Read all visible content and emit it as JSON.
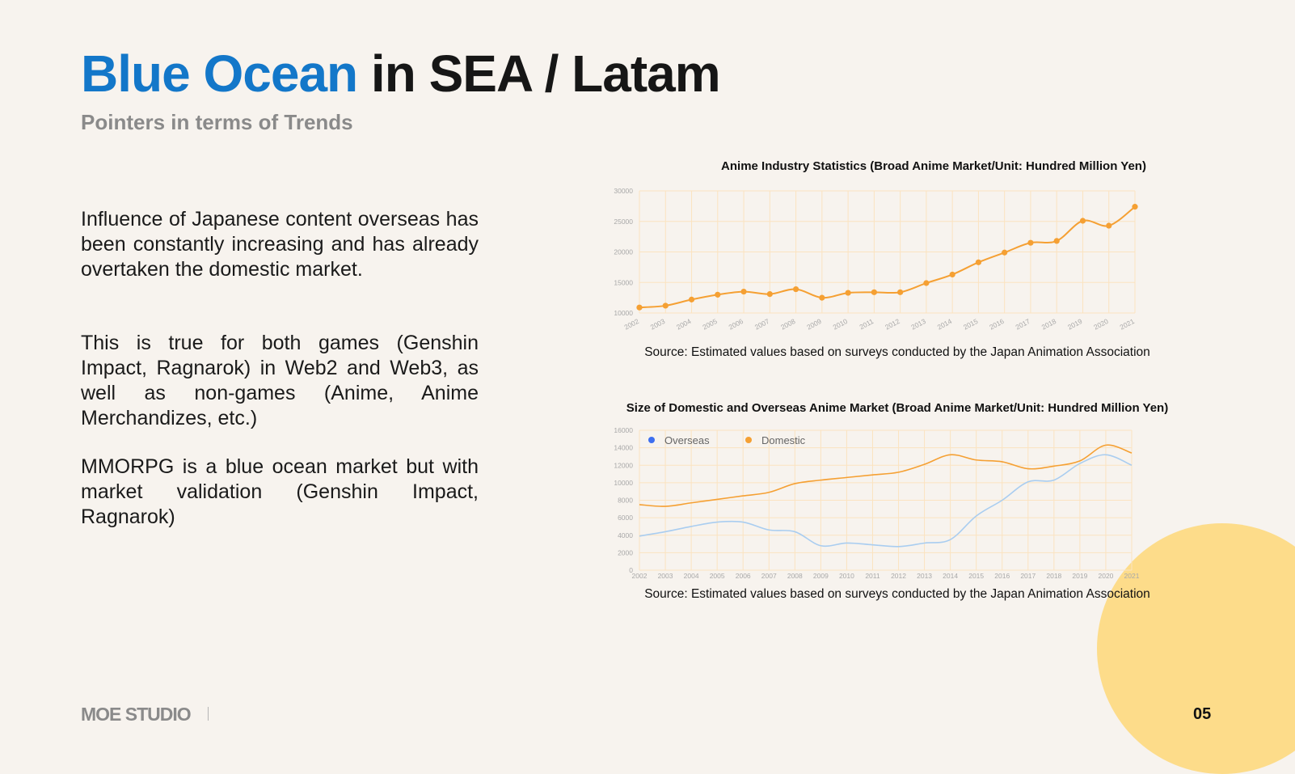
{
  "title": {
    "accent": "Blue Ocean",
    "rest": " in SEA / Latam"
  },
  "subtitle": "Pointers in terms of Trends",
  "paragraphs": [
    "Influence of Japanese content overseas has been constantly increasing and has already overtaken the domestic market.",
    "This is true for both games (Genshin Impact, Ragnarok) in Web2 and Web3, as well as non-games (Anime, Anime Merchandizes, etc.)",
    "MMORPG is a blue ocean market but with market validation (Genshin Impact, Ragnarok)"
  ],
  "footer": {
    "brand": "MOE STUDIO",
    "page": "05"
  },
  "colors": {
    "accent": "#1377c9",
    "orange": "#f5a033",
    "blue": "#a9cdf0",
    "legend_blue": "#3d6ff0",
    "deco": "#fddc8a"
  },
  "chart_data": [
    {
      "type": "line",
      "title": "Anime Industry Statistics (Broad Anime Market/Unit: Hundred Million Yen)",
      "source": "Source: Estimated values based on surveys conducted by the Japan Animation Association",
      "x": [
        "2002",
        "2003",
        "2004",
        "2005",
        "2006",
        "2007",
        "2008",
        "2009",
        "2010",
        "2011",
        "2012",
        "2013",
        "2014",
        "2015",
        "2016",
        "2017",
        "2018",
        "2019",
        "2020",
        "2021"
      ],
      "series": [
        {
          "values": [
            10900,
            11200,
            12200,
            13000,
            13500,
            13100,
            13900,
            12500,
            13300,
            13400,
            13400,
            14900,
            16300,
            18300,
            19900,
            21500,
            21800,
            25100,
            24300,
            27400
          ],
          "color": "#f5a033"
        }
      ],
      "yticks": [
        "30000",
        "25000",
        "20000",
        "15000",
        "10000"
      ],
      "ylim": [
        10000,
        30000
      ],
      "grid": true,
      "xlabel": "",
      "ylabel": ""
    },
    {
      "type": "line",
      "title": "Size of Domestic and Overseas Anime Market (Broad Anime Market/Unit: Hundred Million Yen)",
      "source": "Source: Estimated values based on surveys conducted by the Japan Animation Association",
      "x": [
        "2002",
        "2003",
        "2004",
        "2005",
        "2006",
        "2007",
        "2008",
        "2009",
        "2010",
        "2011",
        "2012",
        "2013",
        "2014",
        "2015",
        "2016",
        "2017",
        "2018",
        "2019",
        "2020",
        "2021"
      ],
      "series": [
        {
          "name": "Overseas",
          "color": "#a9cdf0",
          "legend_color": "#3d6ff0",
          "values": [
            3900,
            4400,
            5000,
            5500,
            5500,
            4600,
            4400,
            2800,
            3100,
            2900,
            2700,
            3100,
            3500,
            6200,
            8000,
            10100,
            10300,
            12200,
            13200,
            12000
          ]
        },
        {
          "name": "Domestic",
          "color": "#f5a033",
          "legend_color": "#f5a033",
          "values": [
            7500,
            7300,
            7700,
            8100,
            8500,
            8900,
            9900,
            10300,
            10600,
            10900,
            11200,
            12100,
            13200,
            12600,
            12400,
            11600,
            11900,
            12500,
            14300,
            13400
          ]
        }
      ],
      "yticks": [
        "16000",
        "14000",
        "12000",
        "10000",
        "8000",
        "6000",
        "4000",
        "2000",
        "0"
      ],
      "ylim": [
        0,
        16000
      ],
      "grid": true,
      "legend": "top-left",
      "xlabel": "",
      "ylabel": ""
    }
  ]
}
